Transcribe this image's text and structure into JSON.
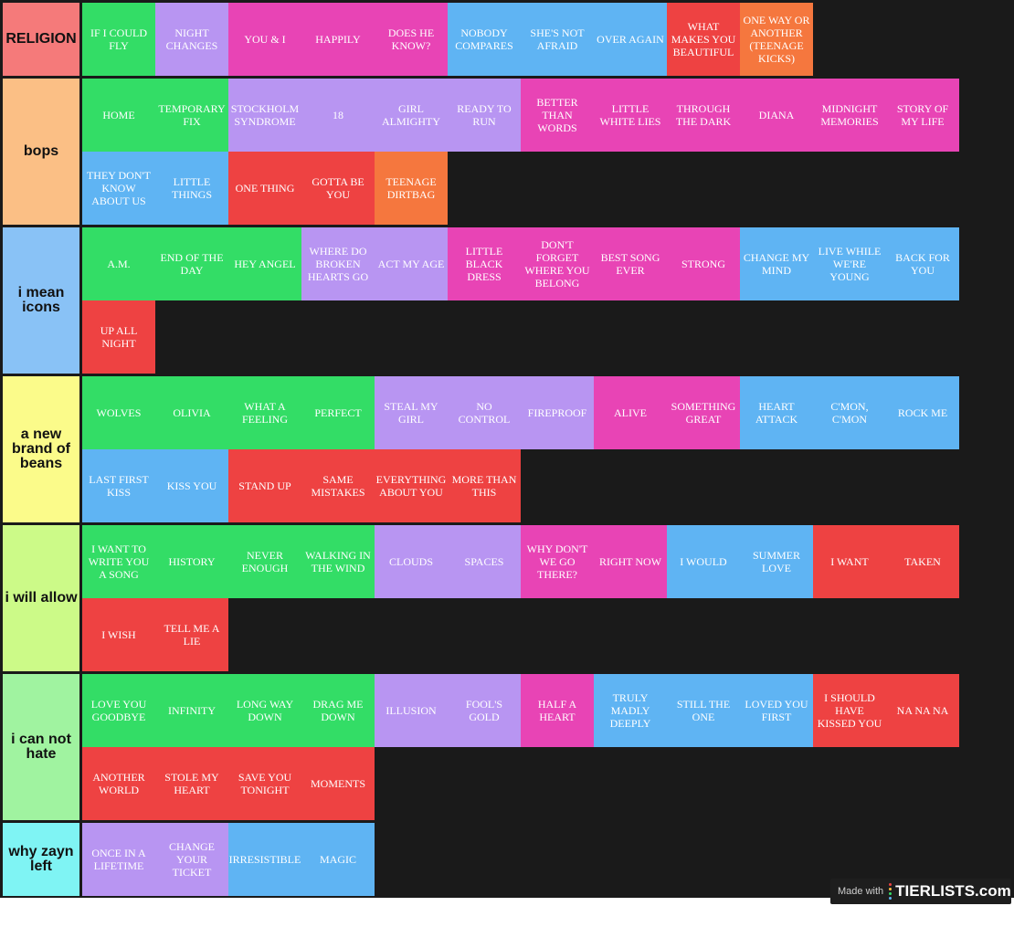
{
  "colors": {
    "green": "#33dd66",
    "purple": "#b895f2",
    "pink": "#e844b5",
    "blue": "#5fb4f3",
    "red": "#ee4242",
    "orange": "#f5773e",
    "background": "#1a1a1a"
  },
  "tiers": [
    {
      "label": "RELIGION",
      "color": "#f57a7a",
      "items": [
        {
          "text": "IF I COULD FLY",
          "color": "#33dd66"
        },
        {
          "text": "NIGHT CHANGES",
          "color": "#b895f2"
        },
        {
          "text": "YOU & I",
          "color": "#e844b5"
        },
        {
          "text": "HAPPILY",
          "color": "#e844b5"
        },
        {
          "text": "DOES HE KNOW?",
          "color": "#e844b5"
        },
        {
          "text": "NOBODY COMPARES",
          "color": "#5fb4f3"
        },
        {
          "text": "SHE'S NOT AFRAID",
          "color": "#5fb4f3"
        },
        {
          "text": "OVER AGAIN",
          "color": "#5fb4f3"
        },
        {
          "text": "WHAT MAKES YOU BEAUTIFUL",
          "color": "#ee4242"
        },
        {
          "text": "ONE WAY OR ANOTHER (TEENAGE KICKS)",
          "color": "#f5773e"
        }
      ]
    },
    {
      "label": "bops",
      "color": "#fbbf85",
      "items": [
        {
          "text": "HOME",
          "color": "#33dd66"
        },
        {
          "text": "TEMPORARY FIX",
          "color": "#33dd66"
        },
        {
          "text": "STOCKHOLM SYNDROME",
          "color": "#b895f2"
        },
        {
          "text": "18",
          "color": "#b895f2"
        },
        {
          "text": "GIRL ALMIGHTY",
          "color": "#b895f2"
        },
        {
          "text": "READY TO RUN",
          "color": "#b895f2"
        },
        {
          "text": "BETTER THAN WORDS",
          "color": "#e844b5"
        },
        {
          "text": "LITTLE WHITE LIES",
          "color": "#e844b5"
        },
        {
          "text": "THROUGH THE DARK",
          "color": "#e844b5"
        },
        {
          "text": "DIANA",
          "color": "#e844b5"
        },
        {
          "text": "MIDNIGHT MEMORIES",
          "color": "#e844b5"
        },
        {
          "text": "STORY OF MY LIFE",
          "color": "#e844b5"
        },
        {
          "text": "THEY DON'T KNOW ABOUT US",
          "color": "#5fb4f3"
        },
        {
          "text": "LITTLE THINGS",
          "color": "#5fb4f3"
        },
        {
          "text": "ONE THING",
          "color": "#ee4242"
        },
        {
          "text": "GOTTA BE YOU",
          "color": "#ee4242"
        },
        {
          "text": "TEENAGE DIRTBAG",
          "color": "#f5773e"
        }
      ]
    },
    {
      "label": "i mean icons",
      "color": "#89c2f6",
      "items": [
        {
          "text": "A.M.",
          "color": "#33dd66"
        },
        {
          "text": "END OF THE DAY",
          "color": "#33dd66"
        },
        {
          "text": "HEY ANGEL",
          "color": "#33dd66"
        },
        {
          "text": "WHERE DO BROKEN HEARTS GO",
          "color": "#b895f2"
        },
        {
          "text": "ACT MY AGE",
          "color": "#b895f2"
        },
        {
          "text": "LITTLE BLACK DRESS",
          "color": "#e844b5"
        },
        {
          "text": "DON'T FORGET WHERE YOU BELONG",
          "color": "#e844b5"
        },
        {
          "text": "BEST SONG EVER",
          "color": "#e844b5"
        },
        {
          "text": "STRONG",
          "color": "#e844b5"
        },
        {
          "text": "CHANGE MY MIND",
          "color": "#5fb4f3"
        },
        {
          "text": "LIVE WHILE WE'RE YOUNG",
          "color": "#5fb4f3"
        },
        {
          "text": "BACK FOR YOU",
          "color": "#5fb4f3"
        },
        {
          "text": "UP ALL NIGHT",
          "color": "#ee4242"
        }
      ]
    },
    {
      "label": "a new brand of beans",
      "color": "#fbfb8a",
      "items": [
        {
          "text": "WOLVES",
          "color": "#33dd66"
        },
        {
          "text": "OLIVIA",
          "color": "#33dd66"
        },
        {
          "text": "WHAT A FEELING",
          "color": "#33dd66"
        },
        {
          "text": "PERFECT",
          "color": "#33dd66"
        },
        {
          "text": "STEAL MY GIRL",
          "color": "#b895f2"
        },
        {
          "text": "NO CONTROL",
          "color": "#b895f2"
        },
        {
          "text": "FIREPROOF",
          "color": "#b895f2"
        },
        {
          "text": "ALIVE",
          "color": "#e844b5"
        },
        {
          "text": "SOMETHING GREAT",
          "color": "#e844b5"
        },
        {
          "text": "HEART ATTACK",
          "color": "#5fb4f3"
        },
        {
          "text": "C'MON, C'MON",
          "color": "#5fb4f3"
        },
        {
          "text": "ROCK ME",
          "color": "#5fb4f3"
        },
        {
          "text": "LAST FIRST KISS",
          "color": "#5fb4f3"
        },
        {
          "text": "KISS YOU",
          "color": "#5fb4f3"
        },
        {
          "text": "STAND UP",
          "color": "#ee4242"
        },
        {
          "text": "SAME MISTAKES",
          "color": "#ee4242"
        },
        {
          "text": "EVERYTHING ABOUT YOU",
          "color": "#ee4242"
        },
        {
          "text": "MORE THAN THIS",
          "color": "#ee4242"
        }
      ]
    },
    {
      "label": "i will allow",
      "color": "#ccfa88",
      "items": [
        {
          "text": "I WANT TO WRITE YOU A SONG",
          "color": "#33dd66"
        },
        {
          "text": "HISTORY",
          "color": "#33dd66"
        },
        {
          "text": "NEVER ENOUGH",
          "color": "#33dd66"
        },
        {
          "text": "WALKING IN THE WIND",
          "color": "#33dd66"
        },
        {
          "text": "CLOUDS",
          "color": "#b895f2"
        },
        {
          "text": "SPACES",
          "color": "#b895f2"
        },
        {
          "text": "WHY DON'T WE GO THERE?",
          "color": "#e844b5"
        },
        {
          "text": "RIGHT NOW",
          "color": "#e844b5"
        },
        {
          "text": "I WOULD",
          "color": "#5fb4f3"
        },
        {
          "text": "SUMMER LOVE",
          "color": "#5fb4f3"
        },
        {
          "text": "I WANT",
          "color": "#ee4242"
        },
        {
          "text": "TAKEN",
          "color": "#ee4242"
        },
        {
          "text": "I WISH",
          "color": "#ee4242"
        },
        {
          "text": "TELL ME A LIE",
          "color": "#ee4242"
        }
      ]
    },
    {
      "label": "i can not hate",
      "color": "#a0f3a0",
      "items": [
        {
          "text": "LOVE YOU GOODBYE",
          "color": "#33dd66"
        },
        {
          "text": "INFINITY",
          "color": "#33dd66"
        },
        {
          "text": "LONG WAY DOWN",
          "color": "#33dd66"
        },
        {
          "text": "DRAG ME DOWN",
          "color": "#33dd66"
        },
        {
          "text": "ILLUSION",
          "color": "#b895f2"
        },
        {
          "text": "FOOL'S GOLD",
          "color": "#b895f2"
        },
        {
          "text": "HALF A HEART",
          "color": "#e844b5"
        },
        {
          "text": "TRULY MADLY DEEPLY",
          "color": "#5fb4f3"
        },
        {
          "text": "STILL THE ONE",
          "color": "#5fb4f3"
        },
        {
          "text": "LOVED YOU FIRST",
          "color": "#5fb4f3"
        },
        {
          "text": "I SHOULD HAVE KISSED YOU",
          "color": "#ee4242"
        },
        {
          "text": "NA NA NA",
          "color": "#ee4242"
        },
        {
          "text": "ANOTHER WORLD",
          "color": "#ee4242"
        },
        {
          "text": "STOLE MY HEART",
          "color": "#ee4242"
        },
        {
          "text": "SAVE YOU TONIGHT",
          "color": "#ee4242"
        },
        {
          "text": "MOMENTS",
          "color": "#ee4242"
        }
      ]
    },
    {
      "label": "why zayn left",
      "color": "#7ff4f4",
      "items": [
        {
          "text": "ONCE IN A LIFETIME",
          "color": "#b895f2"
        },
        {
          "text": "CHANGE YOUR TICKET",
          "color": "#b895f2"
        },
        {
          "text": "IRRESISTIBLE",
          "color": "#5fb4f3"
        },
        {
          "text": "MAGIC",
          "color": "#5fb4f3"
        }
      ]
    }
  ],
  "watermark": {
    "made_with": "Made with",
    "logo": "TIERLISTS.com",
    "dot_colors": [
      "#ee4242",
      "#fbbf45",
      "#33dd66",
      "#5fb4f3"
    ]
  }
}
